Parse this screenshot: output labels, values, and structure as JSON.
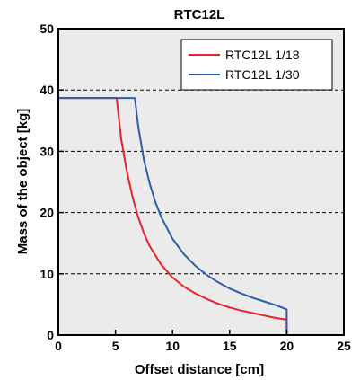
{
  "chart_data": {
    "type": "line",
    "title": "RTC12L",
    "xlabel": "Offset distance [cm]",
    "ylabel": "Mass of the object [kg]",
    "xlim": [
      0,
      25
    ],
    "ylim": [
      0,
      50
    ],
    "xticks": [
      "0",
      "5",
      "10",
      "15",
      "20",
      "25"
    ],
    "yticks": [
      "0",
      "10",
      "20",
      "30",
      "40",
      "50"
    ],
    "grid": "horizontal dashed",
    "legend": "top-right",
    "series": [
      {
        "name": "RTC12L 1/18",
        "color": "#e8232a",
        "x": [
          0,
          5.1,
          5.5,
          6,
          6.5,
          7,
          7.5,
          8,
          9,
          10,
          11,
          12,
          13,
          14,
          15,
          16,
          17,
          18,
          19,
          20,
          20
        ],
        "y": [
          38.7,
          38.7,
          32,
          26.7,
          22.5,
          19.2,
          16.6,
          14.5,
          11.5,
          9.4,
          7.9,
          6.8,
          5.9,
          5.1,
          4.5,
          4.0,
          3.6,
          3.2,
          2.8,
          2.5,
          0
        ]
      },
      {
        "name": "RTC12L 1/30",
        "color": "#2d5ca8",
        "x": [
          0,
          6.7,
          7,
          7.5,
          8,
          8.5,
          9,
          10,
          11,
          12,
          13,
          14,
          15,
          16,
          17,
          18,
          19,
          20,
          20
        ],
        "y": [
          38.7,
          38.7,
          34,
          28.5,
          24.7,
          21.7,
          19.3,
          15.7,
          13.2,
          11.3,
          9.8,
          8.6,
          7.6,
          6.8,
          6.1,
          5.5,
          4.9,
          4.2,
          0
        ]
      }
    ]
  }
}
